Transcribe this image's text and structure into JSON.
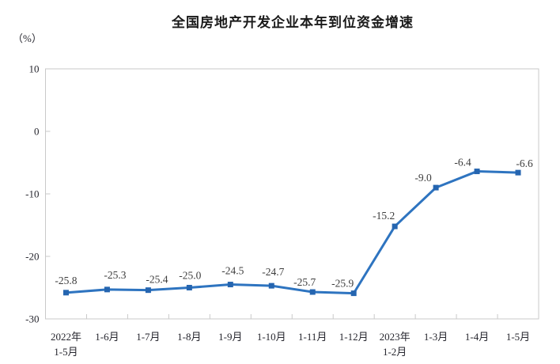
{
  "chart_data": {
    "type": "line",
    "title": "全国房地产开发企业本年到位资金增速",
    "unit_label": "（%）",
    "categories": [
      "2022年\n1-5月",
      "1-6月",
      "1-7月",
      "1-8月",
      "1-9月",
      "1-10月",
      "1-11月",
      "1-12月",
      "2023年\n1-2月",
      "1-3月",
      "1-4月",
      "1-5月"
    ],
    "series": [
      {
        "name": "本年到位资金增速",
        "values": [
          -25.8,
          -25.3,
          -25.4,
          -25.0,
          -24.5,
          -24.7,
          -25.7,
          -25.9,
          -15.2,
          -9.0,
          -6.4,
          -6.6
        ],
        "labels": [
          "-25.8",
          "-25.3",
          "-25.4",
          "-25.0",
          "-24.5",
          "-24.7",
          "-25.7",
          "-25.9",
          "-15.2",
          "-9.0",
          "-6.4",
          "-6.6"
        ]
      }
    ],
    "xlabel": "",
    "ylabel": "（%）",
    "ylim": [
      -30,
      10
    ],
    "y_ticks": [
      10,
      0,
      -10,
      -20,
      -30
    ],
    "y_tick_labels": [
      "10",
      "0",
      "-10",
      "-20",
      "-30"
    ],
    "grid": "off",
    "legend": "none",
    "colors": {
      "line": "#2e74c0",
      "marker": "#2565b0",
      "axis": "#c9c9c9",
      "tick_text": "#26262e",
      "point_label": "#3d3d3d",
      "title": "#1a1a1a",
      "background": "#ffffff"
    }
  }
}
